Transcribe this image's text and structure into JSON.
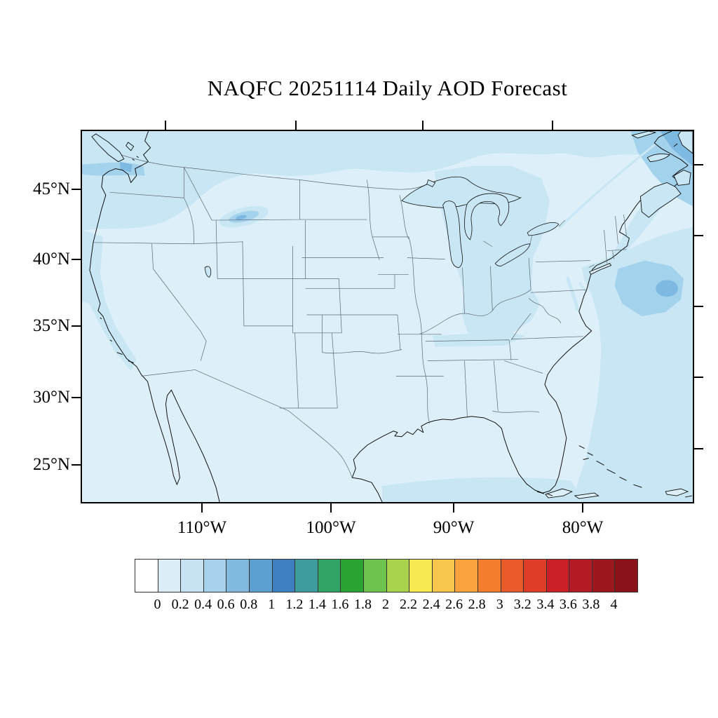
{
  "title": "NAQFC 20251114 Daily AOD Forecast",
  "map": {
    "lat_labels": [
      "45°N",
      "40°N",
      "35°N",
      "30°N",
      "25°N"
    ],
    "lon_labels": [
      "110°W",
      "100°W",
      "90°W",
      "80°W"
    ]
  },
  "map_fill_levels": {
    "lv0": "#ddeff8",
    "lv1": "#c8e6f4",
    "lv2": "#a3d2ed",
    "lv3": "#7db9e0",
    "lv4": "#579dd0"
  },
  "colorbar": {
    "tick_labels": [
      "0",
      "0.2",
      "0.4",
      "0.6",
      "0.8",
      "1",
      "1.2",
      "1.4",
      "1.6",
      "1.8",
      "2",
      "2.2",
      "2.4",
      "2.6",
      "2.8",
      "3",
      "3.2",
      "3.4",
      "3.6",
      "3.8",
      "4"
    ],
    "cell_colors": [
      "#ffffff",
      "#dcedf7",
      "#c7e3f3",
      "#a6d2ec",
      "#82bade",
      "#5c9fd1",
      "#3d7fc1",
      "#3f9c9c",
      "#31a364",
      "#2aa332",
      "#6ec24e",
      "#a9d34c",
      "#f7ea51",
      "#f8c64d",
      "#f9a23e",
      "#f57d2e",
      "#ea5b2b",
      "#de3e27",
      "#cb2028",
      "#b21b24",
      "#9d171e",
      "#8a1319"
    ]
  },
  "chart_data": {
    "type": "heatmap",
    "subtype": "filled-contour-map",
    "title": "NAQFC 20251114 Daily AOD Forecast",
    "geography": "Continental United States with state borders, southern Canada, northern Mexico (Lambert conformal style projection)",
    "units": "Aerosol Optical Depth (dimensionless)",
    "x_axis": {
      "label": "longitude",
      "ticks": [
        "110°W",
        "100°W",
        "90°W",
        "80°W"
      ]
    },
    "y_axis": {
      "label": "latitude",
      "ticks": [
        "45°N",
        "40°N",
        "35°N",
        "30°N",
        "25°N"
      ]
    },
    "levels": [
      0,
      0.2,
      0.4,
      0.6,
      0.8,
      1,
      1.2,
      1.4,
      1.6,
      1.8,
      2,
      2.2,
      2.4,
      2.6,
      2.8,
      3,
      3.2,
      3.4,
      3.6,
      3.8,
      4
    ],
    "colorbar_colors": [
      "#ffffff",
      "#dcedf7",
      "#c7e3f3",
      "#a6d2ec",
      "#82bade",
      "#5c9fd1",
      "#3d7fc1",
      "#3f9c9c",
      "#31a364",
      "#2aa332",
      "#6ec24e",
      "#a9d34c",
      "#f7ea51",
      "#f8c64d",
      "#f9a23e",
      "#f57d2e",
      "#ea5b2b",
      "#de3e27",
      "#cb2028",
      "#b21b24",
      "#9d171e",
      "#8a1319"
    ],
    "legend_position": "horizontal colorbar below map",
    "grid": false,
    "regions": [
      {
        "region": "CONUS interior / Great Plains / Rockies / Texas / Mexico",
        "aod": "0.0-0.2"
      },
      {
        "region": "Canadian strip along northern edge",
        "aod": "0.2-0.4"
      },
      {
        "region": "Pacific Northwest with band into Puget Sound / Strait of Juan de Fuca",
        "aod": "0.4-0.8"
      },
      {
        "region": "Southwest Montana plume",
        "aod": "0.6-0.8"
      },
      {
        "region": "California coastal waters",
        "aod": "0.2-0.4"
      },
      {
        "region": "Great Lakes / Indiana-Ohio valley",
        "aod": "0.2-0.4"
      },
      {
        "region": "Tennessee valley band",
        "aod": "0.2-0.4"
      },
      {
        "region": "Gulf of St. Lawrence and far northeast corner",
        "aod": "0.6-1.0"
      },
      {
        "region": "Western Atlantic off the mid-Atlantic coast",
        "aod": "0.4-0.8"
      },
      {
        "region": "Southeast US coastal strip",
        "aod": "0.0-0.2"
      },
      {
        "region": "Caribbean / Bahamas southeast corner and southern Gulf band",
        "aod": "0.2-0.4"
      }
    ]
  }
}
